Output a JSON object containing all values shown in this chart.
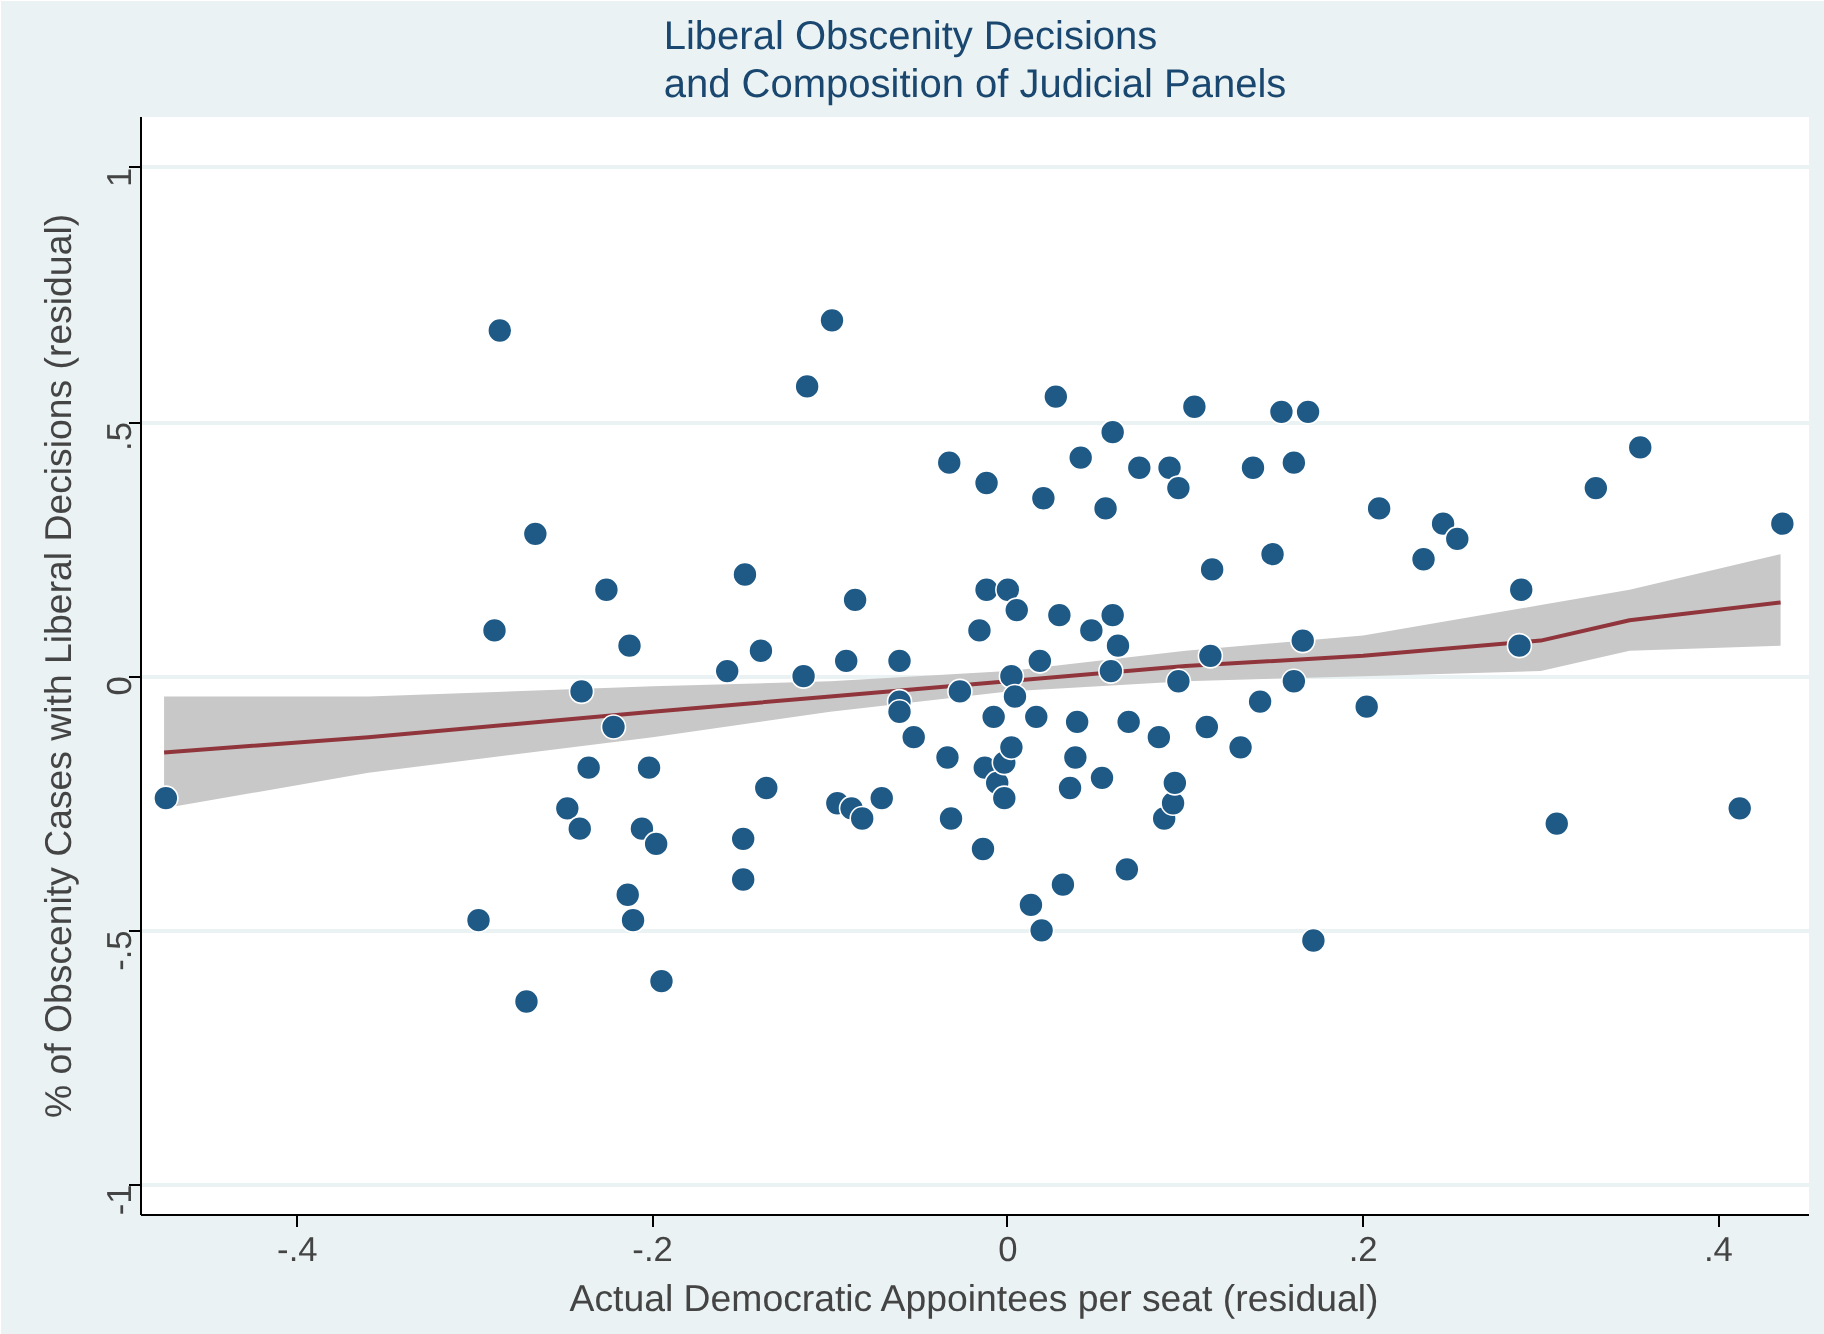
{
  "chart_data": {
    "type": "scatter",
    "title": "Liberal Obscenity Decisions\nand Composition of Judicial Panels",
    "xlabel": "Actual Democratic Appointees per seat (residual)",
    "ylabel": "% of Obscenity Cases with Liberal Decisions (residual)",
    "xlim": [
      -0.488,
      0.451
    ],
    "ylim": [
      -1.06,
      1.1
    ],
    "xticks": [
      {
        "value": -0.4,
        "label": "-.4"
      },
      {
        "value": -0.2,
        "label": "-.2"
      },
      0,
      {
        "value": 0.2,
        "label": ".2"
      },
      {
        "value": 0.4,
        "label": ".4"
      }
    ],
    "yticks": [
      -1,
      {
        "value": -0.5,
        "label": "-.5"
      },
      0,
      {
        "value": 0.5,
        "label": ".5"
      },
      1
    ],
    "grid": "y",
    "marker": "circle",
    "series": [
      {
        "type": "line",
        "marker": "none",
        "color": "#90353b",
        "x": [
          -0.475,
          -0.36,
          -0.2,
          -0.1,
          0,
          0.1,
          0.2,
          0.3,
          0.35,
          0.435
        ],
        "values": [
          -0.15,
          -0.12,
          -0.07,
          -0.04,
          -0.01,
          0.02,
          0.04,
          0.07,
          0.11,
          0.145
        ],
        "lower": [
          -0.26,
          -0.19,
          -0.12,
          -0.07,
          -0.03,
          -0.01,
          0.0,
          0.01,
          0.05,
          0.06
        ],
        "upper": [
          -0.04,
          -0.04,
          -0.02,
          -0.01,
          0.01,
          0.05,
          0.08,
          0.14,
          0.17,
          0.24
        ]
      },
      {
        "color": "#1f5a86",
        "x": [
          -0.474,
          -0.286,
          -0.289,
          -0.266,
          -0.298,
          -0.271,
          -0.226,
          -0.213,
          -0.24,
          -0.222,
          -0.236,
          -0.248,
          -0.241,
          -0.206,
          -0.202,
          -0.198,
          -0.214,
          -0.211,
          -0.195,
          -0.148,
          -0.158,
          -0.139,
          -0.136,
          -0.149,
          -0.149,
          -0.115,
          -0.113,
          -0.099,
          -0.091,
          -0.086,
          -0.096,
          -0.088,
          -0.082,
          -0.071,
          -0.061,
          -0.061,
          -0.061,
          -0.053,
          -0.033,
          -0.034,
          -0.032,
          -0.027,
          -0.016,
          -0.012,
          -0.012,
          -0.013,
          -0.014,
          -0.008,
          -0.006,
          -0.002,
          -0.002,
          0.002,
          0.0,
          0.005,
          0.002,
          0.004,
          0.013,
          0.019,
          0.02,
          0.027,
          0.029,
          0.016,
          0.018,
          0.031,
          0.039,
          0.038,
          0.035,
          0.041,
          0.047,
          0.053,
          0.059,
          0.055,
          0.059,
          0.058,
          0.062,
          0.067,
          0.068,
          0.074,
          0.085,
          0.088,
          0.093,
          0.094,
          0.091,
          0.096,
          0.096,
          0.105,
          0.112,
          0.114,
          0.115,
          0.131,
          0.138,
          0.142,
          0.149,
          0.154,
          0.161,
          0.161,
          0.166,
          0.169,
          0.172,
          0.202,
          0.209,
          0.234,
          0.245,
          0.253,
          0.289,
          0.288,
          0.309,
          0.331,
          0.356,
          0.412,
          0.436
        ],
        "values": [
          -0.24,
          0.68,
          0.09,
          0.28,
          -0.48,
          -0.64,
          0.17,
          0.06,
          -0.03,
          -0.1,
          -0.18,
          -0.26,
          -0.3,
          -0.3,
          -0.18,
          -0.33,
          -0.43,
          -0.48,
          -0.6,
          0.2,
          0.01,
          0.05,
          -0.22,
          -0.32,
          -0.4,
          0.0,
          0.57,
          0.7,
          0.03,
          0.15,
          -0.25,
          -0.26,
          -0.28,
          -0.24,
          0.03,
          -0.05,
          -0.07,
          -0.12,
          0.42,
          -0.16,
          -0.28,
          -0.03,
          0.09,
          0.38,
          0.17,
          -0.18,
          -0.34,
          -0.08,
          -0.21,
          -0.17,
          -0.24,
          0.0,
          0.17,
          0.13,
          -0.14,
          -0.04,
          -0.45,
          -0.5,
          0.35,
          0.55,
          0.12,
          -0.08,
          0.03,
          -0.41,
          -0.09,
          -0.16,
          -0.22,
          0.43,
          0.09,
          -0.2,
          0.48,
          0.33,
          0.12,
          0.01,
          0.06,
          -0.38,
          -0.09,
          0.41,
          -0.12,
          -0.28,
          -0.25,
          -0.21,
          0.41,
          0.37,
          -0.01,
          0.53,
          -0.1,
          0.04,
          0.21,
          -0.14,
          0.41,
          -0.05,
          0.24,
          0.52,
          0.42,
          -0.01,
          0.07,
          0.52,
          -0.52,
          -0.06,
          0.33,
          0.23,
          0.3,
          0.27,
          0.17,
          0.06,
          -0.29,
          0.37,
          0.45,
          -0.26,
          0.3
        ]
      }
    ]
  }
}
